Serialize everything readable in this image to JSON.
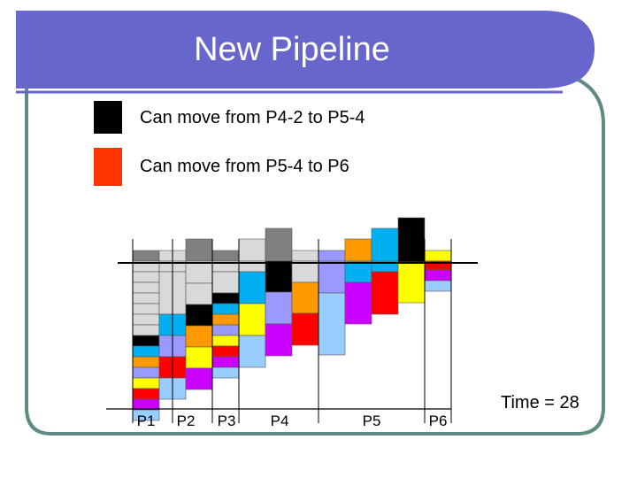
{
  "title": "New Pipeline",
  "legend": [
    {
      "color": "#000000",
      "label": "Can move from P4-2 to P5-4"
    },
    {
      "color": "#ff3300",
      "label": "Can move from P5-4 to P6"
    }
  ],
  "stages": [
    "P1",
    "P2",
    "P3",
    "P4",
    "P5",
    "P6"
  ],
  "time_label": "Time = 28",
  "colors": {
    "header": "#6666cc",
    "frame": "#5f8a84",
    "gray": "#808080",
    "lightgray": "#d9d9d9",
    "black": "#000000",
    "cyan": "#00b0f0",
    "blue": "#9999ff",
    "orange": "#ff9900",
    "yellow": "#ffff00",
    "red": "#ff0000",
    "magenta": "#cc00ff",
    "lightblue": "#99ccff"
  }
}
